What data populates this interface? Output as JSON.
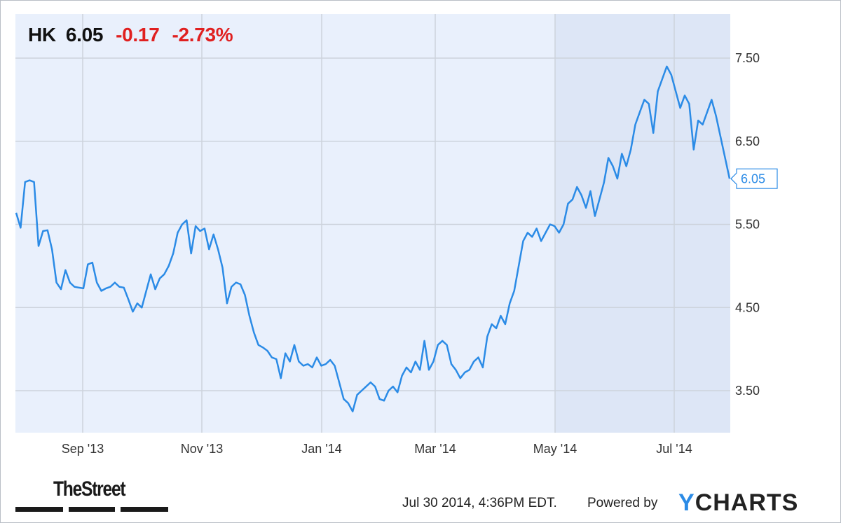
{
  "header": {
    "symbol": "HK",
    "price": "6.05",
    "change": "-0.17",
    "change_pct": "-2.73%"
  },
  "footer": {
    "brand_left": "TheStreet",
    "timestamp": "Jul 30 2014, 4:36PM EDT.",
    "powered_by": "Powered by",
    "brand_right_y": "Y",
    "brand_right_rest": "CHARTS"
  },
  "colors": {
    "line": "#2b8be6",
    "plot_bg": "#e9f0fc",
    "highlight_bg": "#dde6f6",
    "grid": "#cdd3dc",
    "negative": "#e02020"
  },
  "chart_data": {
    "type": "line",
    "title": "",
    "xlabel": "",
    "ylabel": "",
    "x_tick_labels": [
      "Sep '13",
      "Nov '13",
      "Jan '14",
      "Mar '14",
      "May '14",
      "Jul '14"
    ],
    "y_tick_labels": [
      "3.50",
      "4.50",
      "5.50",
      "6.50",
      "7.50"
    ],
    "y_ticks": [
      3.5,
      4.5,
      5.5,
      6.5,
      7.5
    ],
    "ylim": [
      3.0,
      7.85
    ],
    "last_value_label": "6.05",
    "grid": true,
    "y_axis_side": "right",
    "series": [
      {
        "values": [
          5.64,
          5.46,
          6.01,
          6.03,
          6.01,
          5.24,
          5.42,
          5.43,
          5.2,
          4.8,
          4.72,
          4.95,
          4.8,
          4.75,
          4.74,
          4.73,
          5.02,
          5.04,
          4.8,
          4.7,
          4.73,
          4.75,
          4.8,
          4.75,
          4.74,
          4.6,
          4.45,
          4.55,
          4.5,
          4.7,
          4.9,
          4.72,
          4.85,
          4.9,
          5.0,
          5.15,
          5.4,
          5.5,
          5.55,
          5.15,
          5.48,
          5.42,
          5.45,
          5.2,
          5.38,
          5.2,
          4.98,
          4.55,
          4.75,
          4.8,
          4.78,
          4.65,
          4.4,
          4.2,
          4.05,
          4.02,
          3.98,
          3.9,
          3.88,
          3.65,
          3.95,
          3.85,
          4.05,
          3.85,
          3.8,
          3.82,
          3.78,
          3.9,
          3.8,
          3.82,
          3.87,
          3.8,
          3.6,
          3.4,
          3.35,
          3.25,
          3.45,
          3.5,
          3.55,
          3.6,
          3.55,
          3.4,
          3.38,
          3.5,
          3.55,
          3.48,
          3.68,
          3.78,
          3.72,
          3.85,
          3.75,
          4.1,
          3.75,
          3.85,
          4.05,
          4.1,
          4.05,
          3.82,
          3.75,
          3.65,
          3.72,
          3.75,
          3.85,
          3.9,
          3.78,
          4.15,
          4.3,
          4.25,
          4.4,
          4.3,
          4.55,
          4.7,
          5.0,
          5.3,
          5.4,
          5.35,
          5.45,
          5.3,
          5.4,
          5.5,
          5.48,
          5.4,
          5.5,
          5.75,
          5.8,
          5.95,
          5.85,
          5.7,
          5.9,
          5.6,
          5.8,
          6.0,
          6.3,
          6.2,
          6.05,
          6.35,
          6.2,
          6.4,
          6.7,
          6.85,
          7.0,
          6.95,
          6.6,
          7.1,
          7.25,
          7.4,
          7.3,
          7.1,
          6.9,
          7.05,
          6.95,
          6.4,
          6.75,
          6.7,
          6.85,
          7.0,
          6.8,
          6.55,
          6.3,
          6.05
        ]
      }
    ]
  }
}
